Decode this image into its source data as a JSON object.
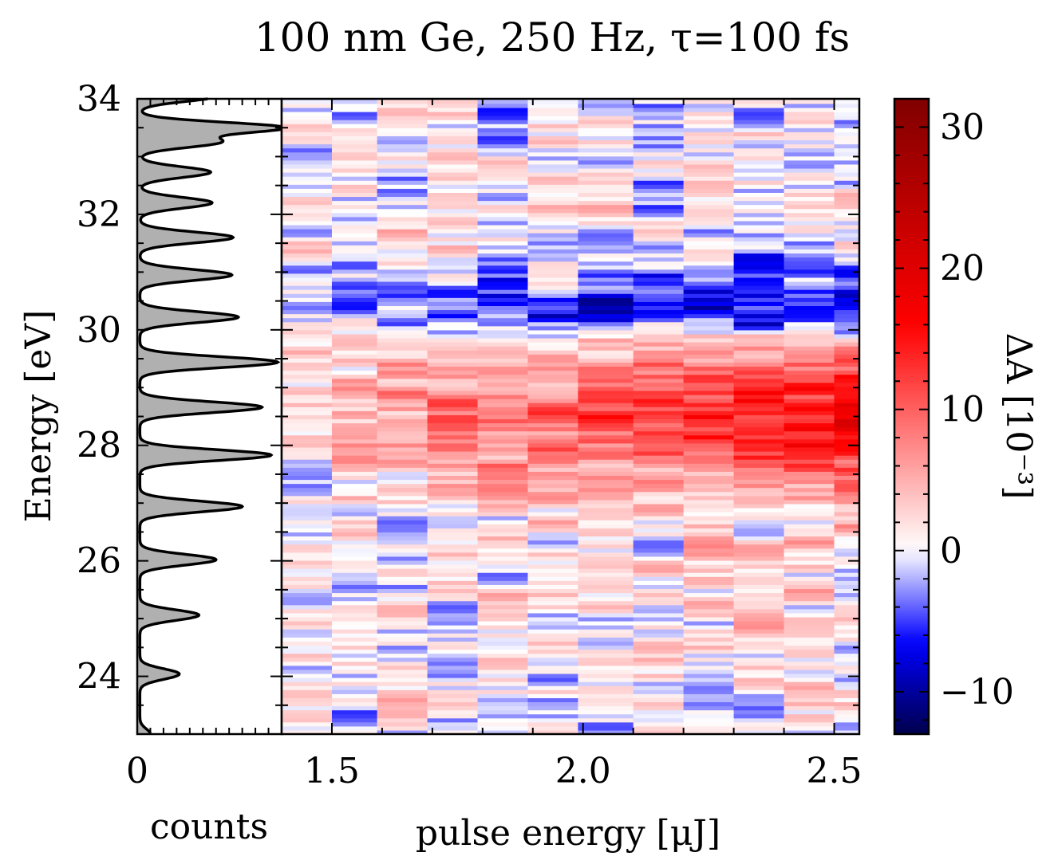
{
  "chart_data": [
    {
      "type": "line",
      "title": "100 nm Ge, 250 Hz, τ=100 fs",
      "xlabel": "counts",
      "ylabel": "Energy [eV]",
      "xlim": [
        0,
        1.1
      ],
      "ylim": [
        23,
        34
      ],
      "x_tick_labels": [
        {
          "v": 0,
          "label": "0"
        }
      ],
      "y_tick_labels": [
        {
          "v": 24,
          "label": "24"
        },
        {
          "v": 26,
          "label": "26"
        },
        {
          "v": 28,
          "label": "28"
        },
        {
          "v": 30,
          "label": "30"
        },
        {
          "v": 32,
          "label": "32"
        },
        {
          "v": 34,
          "label": "34"
        }
      ],
      "fill_color": "#b0b0b0",
      "peaks": [
        {
          "e": 23.0,
          "h": 0.08
        },
        {
          "e": 24.04,
          "h": 0.3
        },
        {
          "e": 25.06,
          "h": 0.45
        },
        {
          "e": 26.02,
          "h": 0.58
        },
        {
          "e": 26.94,
          "h": 0.78
        },
        {
          "e": 27.83,
          "h": 1.0
        },
        {
          "e": 28.66,
          "h": 0.93
        },
        {
          "e": 29.44,
          "h": 1.05
        },
        {
          "e": 30.22,
          "h": 0.75
        },
        {
          "e": 30.95,
          "h": 0.7
        },
        {
          "e": 31.6,
          "h": 0.71
        },
        {
          "e": 32.2,
          "h": 0.55
        },
        {
          "e": 32.73,
          "h": 0.54
        },
        {
          "e": 33.25,
          "h": 0.6
        },
        {
          "e": 33.5,
          "h": 1.1
        },
        {
          "e": 34.05,
          "h": 0.6
        }
      ],
      "peak_width": 0.13,
      "baseline": 0.02
    },
    {
      "type": "heatmap",
      "xlabel": "pulse energy [μJ]",
      "ylabel": "Energy [eV]",
      "xlim": [
        1.4,
        2.55
      ],
      "ylim": [
        23,
        34
      ],
      "x_tick_labels": [
        {
          "v": 1.5,
          "label": "1.5"
        },
        {
          "v": 2.0,
          "label": "2.0"
        },
        {
          "v": 2.5,
          "label": "2.5"
        }
      ],
      "x_columns": [
        1.45,
        1.54,
        1.64,
        1.74,
        1.84,
        1.94,
        2.05,
        2.15,
        2.25,
        2.35,
        2.45,
        2.51
      ],
      "column_edges": [
        1.4,
        1.5,
        1.59,
        1.69,
        1.79,
        1.89,
        1.99,
        2.1,
        2.2,
        2.3,
        2.4,
        2.5,
        2.55
      ],
      "energy_profile": [
        {
          "e": 23.0,
          "v": 0.3
        },
        {
          "e": 24.0,
          "v": 1.0
        },
        {
          "e": 25.0,
          "v": 1.5
        },
        {
          "e": 26.0,
          "v": 2.0
        },
        {
          "e": 26.8,
          "v": 3.0
        },
        {
          "e": 27.5,
          "v": 7.0
        },
        {
          "e": 28.0,
          "v": 14.0
        },
        {
          "e": 28.5,
          "v": 15.0
        },
        {
          "e": 29.0,
          "v": 13.0
        },
        {
          "e": 29.5,
          "v": 9.0
        },
        {
          "e": 29.85,
          "v": 5.0
        },
        {
          "e": 30.0,
          "v": -2.0
        },
        {
          "e": 30.3,
          "v": -8.0
        },
        {
          "e": 30.6,
          "v": -7.0
        },
        {
          "e": 31.0,
          "v": -4.0
        },
        {
          "e": 31.4,
          "v": -1.0
        },
        {
          "e": 32.0,
          "v": 0.8
        },
        {
          "e": 33.0,
          "v": 0.5
        },
        {
          "e": 34.0,
          "v": 0.2
        }
      ],
      "column_gain": [
        0.12,
        0.25,
        0.5,
        0.55,
        0.62,
        0.68,
        0.75,
        0.85,
        0.9,
        1.0,
        1.1,
        1.1
      ],
      "noise_amplitude": 5,
      "row_height_ev": 0.07
    },
    {
      "type": "colorbar",
      "label": "ΔA [10⁻³]",
      "clim": [
        -13,
        32
      ],
      "tick_labels": [
        {
          "v": -10,
          "label": "−10"
        },
        {
          "v": 0,
          "label": "0"
        },
        {
          "v": 10,
          "label": "10"
        },
        {
          "v": 20,
          "label": "20"
        },
        {
          "v": 30,
          "label": "30"
        }
      ],
      "colors": {
        "low": "#00004c",
        "neg_mid": "#0000ff",
        "zero": "#ffffff",
        "pos_mid": "#ff0000",
        "high": "#800000"
      }
    }
  ]
}
